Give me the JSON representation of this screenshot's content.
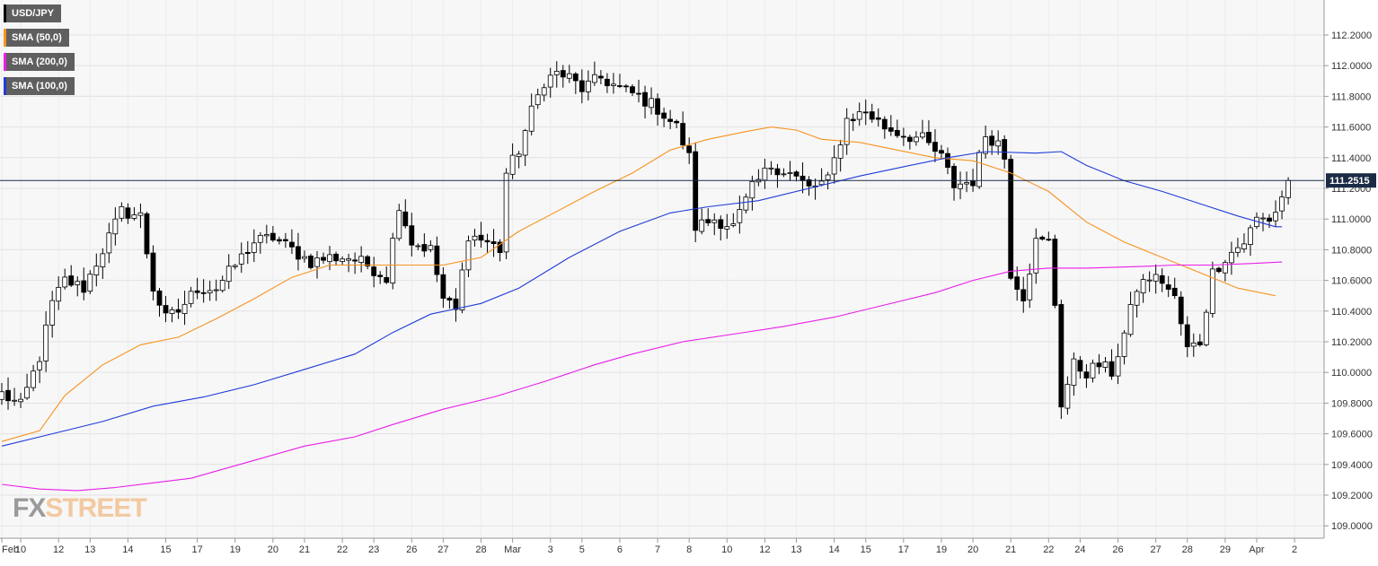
{
  "chart_data": {
    "type": "candlestick",
    "symbol": "USD/JPY",
    "last_price_label": "111.2515",
    "last_price": 111.2515,
    "ylim": [
      108.95,
      112.35
    ],
    "yticks": [
      "112.2000",
      "112.0000",
      "111.8000",
      "111.6000",
      "111.4000",
      "111.2000",
      "111.0000",
      "110.8000",
      "110.6000",
      "110.4000",
      "110.2000",
      "110.0000",
      "109.8000",
      "109.6000",
      "109.4000",
      "109.2000",
      "109.0000"
    ],
    "xticks": [
      {
        "label": "Feb",
        "i": 0
      },
      {
        "label": "10",
        "i": 3
      },
      {
        "label": "12",
        "i": 9
      },
      {
        "label": "13",
        "i": 14
      },
      {
        "label": "14",
        "i": 20
      },
      {
        "label": "15",
        "i": 26
      },
      {
        "label": "17",
        "i": 31
      },
      {
        "label": "19",
        "i": 37
      },
      {
        "label": "20",
        "i": 43
      },
      {
        "label": "21",
        "i": 48
      },
      {
        "label": "22",
        "i": 54
      },
      {
        "label": "23",
        "i": 59
      },
      {
        "label": "26",
        "i": 65
      },
      {
        "label": "27",
        "i": 70
      },
      {
        "label": "28",
        "i": 76
      },
      {
        "label": "Mar",
        "i": 81
      },
      {
        "label": "3",
        "i": 87
      },
      {
        "label": "5",
        "i": 92
      },
      {
        "label": "6",
        "i": 98
      },
      {
        "label": "7",
        "i": 104
      },
      {
        "label": "8",
        "i": 109
      },
      {
        "label": "10",
        "i": 115
      },
      {
        "label": "12",
        "i": 121
      },
      {
        "label": "13",
        "i": 126
      },
      {
        "label": "14",
        "i": 132
      },
      {
        "label": "15",
        "i": 137
      },
      {
        "label": "17",
        "i": 143
      },
      {
        "label": "19",
        "i": 149
      },
      {
        "label": "20",
        "i": 154
      },
      {
        "label": "21",
        "i": 160
      },
      {
        "label": "22",
        "i": 166
      },
      {
        "label": "24",
        "i": 171
      },
      {
        "label": "26",
        "i": 177
      },
      {
        "label": "27",
        "i": 183
      },
      {
        "label": "28",
        "i": 188
      },
      {
        "label": "29",
        "i": 194
      },
      {
        "label": "Apr",
        "i": 199
      },
      {
        "label": "2",
        "i": 205
      }
    ],
    "anchors": [
      [
        0,
        109.86
      ],
      [
        3,
        109.78
      ],
      [
        6,
        110.1
      ],
      [
        8,
        110.45
      ],
      [
        10,
        110.6
      ],
      [
        13,
        110.55
      ],
      [
        16,
        110.8
      ],
      [
        19,
        111.05
      ],
      [
        22,
        111.02
      ],
      [
        24,
        110.55
      ],
      [
        26,
        110.35
      ],
      [
        28,
        110.4
      ],
      [
        31,
        110.55
      ],
      [
        34,
        110.55
      ],
      [
        37,
        110.7
      ],
      [
        40,
        110.85
      ],
      [
        43,
        110.88
      ],
      [
        46,
        110.8
      ],
      [
        49,
        110.72
      ],
      [
        52,
        110.75
      ],
      [
        55,
        110.75
      ],
      [
        58,
        110.7
      ],
      [
        61,
        110.62
      ],
      [
        63,
        111.1
      ],
      [
        65,
        110.85
      ],
      [
        68,
        110.8
      ],
      [
        70,
        110.48
      ],
      [
        72,
        110.4
      ],
      [
        74,
        110.9
      ],
      [
        77,
        110.85
      ],
      [
        79,
        110.8
      ],
      [
        80,
        111.3
      ],
      [
        82,
        111.45
      ],
      [
        84,
        111.7
      ],
      [
        86,
        111.9
      ],
      [
        88,
        111.95
      ],
      [
        90,
        111.92
      ],
      [
        92,
        111.85
      ],
      [
        95,
        111.92
      ],
      [
        98,
        111.85
      ],
      [
        101,
        111.8
      ],
      [
        104,
        111.72
      ],
      [
        107,
        111.6
      ],
      [
        109,
        111.4
      ],
      [
        110,
        110.95
      ],
      [
        113,
        111.0
      ],
      [
        116,
        110.95
      ],
      [
        119,
        111.2
      ],
      [
        122,
        111.35
      ],
      [
        125,
        111.3
      ],
      [
        128,
        111.2
      ],
      [
        131,
        111.25
      ],
      [
        134,
        111.65
      ],
      [
        137,
        111.7
      ],
      [
        140,
        111.6
      ],
      [
        143,
        111.55
      ],
      [
        146,
        111.52
      ],
      [
        149,
        111.4
      ],
      [
        151,
        111.22
      ],
      [
        154,
        111.25
      ],
      [
        156,
        111.55
      ],
      [
        158,
        111.5
      ],
      [
        159,
        111.4
      ],
      [
        160,
        110.65
      ],
      [
        162,
        110.5
      ],
      [
        164,
        110.85
      ],
      [
        166,
        110.85
      ],
      [
        167,
        110.45
      ],
      [
        168,
        109.8
      ],
      [
        170,
        110.05
      ],
      [
        172,
        110.0
      ],
      [
        174,
        110.05
      ],
      [
        176,
        110.0
      ],
      [
        178,
        110.25
      ],
      [
        180,
        110.55
      ],
      [
        182,
        110.62
      ],
      [
        184,
        110.6
      ],
      [
        186,
        110.48
      ],
      [
        188,
        110.15
      ],
      [
        190,
        110.2
      ],
      [
        192,
        110.65
      ],
      [
        194,
        110.75
      ],
      [
        197,
        110.85
      ],
      [
        199,
        111.0
      ],
      [
        201,
        111.0
      ],
      [
        202,
        111.05
      ],
      [
        204,
        111.25
      ]
    ],
    "sma_50": {
      "name": "SMA (50,0)",
      "color": "#f7931e",
      "points": [
        [
          0,
          109.55
        ],
        [
          6,
          109.62
        ],
        [
          10,
          109.85
        ],
        [
          16,
          110.05
        ],
        [
          22,
          110.18
        ],
        [
          28,
          110.23
        ],
        [
          34,
          110.35
        ],
        [
          40,
          110.48
        ],
        [
          46,
          110.62
        ],
        [
          52,
          110.7
        ],
        [
          58,
          110.7
        ],
        [
          64,
          110.7
        ],
        [
          70,
          110.7
        ],
        [
          76,
          110.75
        ],
        [
          82,
          110.92
        ],
        [
          88,
          111.05
        ],
        [
          94,
          111.18
        ],
        [
          100,
          111.3
        ],
        [
          106,
          111.45
        ],
        [
          112,
          111.52
        ],
        [
          118,
          111.57
        ],
        [
          122,
          111.6
        ],
        [
          126,
          111.58
        ],
        [
          130,
          111.52
        ],
        [
          136,
          111.5
        ],
        [
          142,
          111.45
        ],
        [
          148,
          111.4
        ],
        [
          154,
          111.38
        ],
        [
          160,
          111.3
        ],
        [
          166,
          111.18
        ],
        [
          172,
          110.98
        ],
        [
          178,
          110.85
        ],
        [
          184,
          110.75
        ],
        [
          190,
          110.65
        ],
        [
          196,
          110.55
        ],
        [
          202,
          110.5
        ]
      ]
    },
    "sma_100": {
      "name": "SMA (100,0)",
      "color": "#1f3bd8",
      "points": [
        [
          0,
          109.52
        ],
        [
          8,
          109.6
        ],
        [
          16,
          109.68
        ],
        [
          24,
          109.78
        ],
        [
          32,
          109.84
        ],
        [
          40,
          109.92
        ],
        [
          48,
          110.02
        ],
        [
          56,
          110.12
        ],
        [
          62,
          110.26
        ],
        [
          68,
          110.38
        ],
        [
          76,
          110.45
        ],
        [
          82,
          110.55
        ],
        [
          90,
          110.75
        ],
        [
          98,
          110.92
        ],
        [
          106,
          111.04
        ],
        [
          112,
          111.08
        ],
        [
          120,
          111.12
        ],
        [
          128,
          111.2
        ],
        [
          136,
          111.28
        ],
        [
          144,
          111.35
        ],
        [
          150,
          111.4
        ],
        [
          156,
          111.44
        ],
        [
          164,
          111.43
        ],
        [
          168,
          111.44
        ],
        [
          172,
          111.35
        ],
        [
          178,
          111.25
        ],
        [
          184,
          111.18
        ],
        [
          190,
          111.1
        ],
        [
          196,
          111.02
        ],
        [
          202,
          110.95
        ],
        [
          203,
          110.95
        ]
      ]
    },
    "sma_200": {
      "name": "SMA (200,0)",
      "color": "#e91ee9",
      "points": [
        [
          0,
          109.27
        ],
        [
          6,
          109.24
        ],
        [
          12,
          109.23
        ],
        [
          18,
          109.25
        ],
        [
          24,
          109.28
        ],
        [
          30,
          109.31
        ],
        [
          36,
          109.38
        ],
        [
          42,
          109.45
        ],
        [
          48,
          109.52
        ],
        [
          56,
          109.58
        ],
        [
          62,
          109.66
        ],
        [
          70,
          109.76
        ],
        [
          78,
          109.84
        ],
        [
          86,
          109.94
        ],
        [
          94,
          110.05
        ],
        [
          100,
          110.12
        ],
        [
          108,
          110.2
        ],
        [
          116,
          110.25
        ],
        [
          124,
          110.3
        ],
        [
          132,
          110.36
        ],
        [
          140,
          110.44
        ],
        [
          148,
          110.52
        ],
        [
          154,
          110.6
        ],
        [
          160,
          110.66
        ],
        [
          166,
          110.68
        ],
        [
          172,
          110.68
        ],
        [
          180,
          110.69
        ],
        [
          186,
          110.7
        ],
        [
          192,
          110.7
        ],
        [
          198,
          110.71
        ],
        [
          203,
          110.72
        ]
      ]
    }
  },
  "legend": [
    {
      "label": "USD/JPY",
      "color": "#000000"
    },
    {
      "label": "SMA (50,0)",
      "color": "#f7931e"
    },
    {
      "label": "SMA (200,0)",
      "color": "#e91ee9"
    },
    {
      "label": "SMA (100,0)",
      "color": "#1f3bd8"
    }
  ],
  "logo": {
    "fx": "FX",
    "street": "STREET"
  }
}
